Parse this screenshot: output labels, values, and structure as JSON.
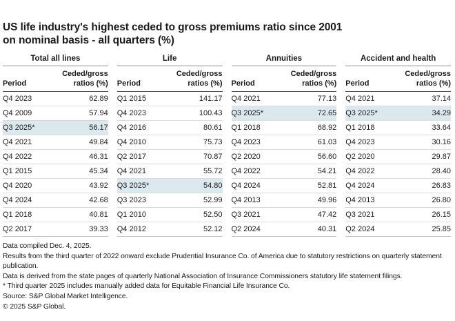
{
  "title": {
    "line1": "US life industry's highest ceded to gross premiums ratio since 2001",
    "line2": "on nominal basis - all quarters (%)"
  },
  "chart_data": {
    "type": "table",
    "title": "US life industry's highest ceded to gross premiums ratio since 2001 on nominal basis - all quarters (%)",
    "period_header": "Period",
    "value_header": "Ceded/gross\nratios (%)",
    "highlighted_period": "Q3 2025*",
    "groups": [
      {
        "label": "Total all lines",
        "rows": [
          {
            "period": "Q4 2023",
            "value": "62.89",
            "highlight": false
          },
          {
            "period": "Q4 2009",
            "value": "57.94",
            "highlight": false
          },
          {
            "period": "Q3 2025*",
            "value": "56.17",
            "highlight": true
          },
          {
            "period": "Q4 2021",
            "value": "49.84",
            "highlight": false
          },
          {
            "period": "Q4 2022",
            "value": "46.31",
            "highlight": false
          },
          {
            "period": "Q1 2015",
            "value": "45.34",
            "highlight": false
          },
          {
            "period": "Q4 2020",
            "value": "43.92",
            "highlight": false
          },
          {
            "period": "Q4 2024",
            "value": "42.68",
            "highlight": false
          },
          {
            "period": "Q1 2018",
            "value": "40.81",
            "highlight": false
          },
          {
            "period": "Q2 2017",
            "value": "39.33",
            "highlight": false
          }
        ]
      },
      {
        "label": "Life",
        "rows": [
          {
            "period": "Q1 2015",
            "value": "141.17",
            "highlight": false
          },
          {
            "period": "Q4 2023",
            "value": "100.43",
            "highlight": false
          },
          {
            "period": "Q4 2016",
            "value": "80.61",
            "highlight": false
          },
          {
            "period": "Q4 2010",
            "value": "75.73",
            "highlight": false
          },
          {
            "period": "Q2 2017",
            "value": "70.87",
            "highlight": false
          },
          {
            "period": "Q4 2021",
            "value": "55.72",
            "highlight": false
          },
          {
            "period": "Q3 2025*",
            "value": "54.80",
            "highlight": true
          },
          {
            "period": "Q3 2023",
            "value": "52.99",
            "highlight": false
          },
          {
            "period": "Q1 2010",
            "value": "52.50",
            "highlight": false
          },
          {
            "period": "Q4 2012",
            "value": "52.12",
            "highlight": false
          }
        ]
      },
      {
        "label": "Annuities",
        "rows": [
          {
            "period": "Q4 2021",
            "value": "77.13",
            "highlight": false
          },
          {
            "period": "Q3 2025*",
            "value": "72.65",
            "highlight": true
          },
          {
            "period": "Q1 2018",
            "value": "68.92",
            "highlight": false
          },
          {
            "period": "Q4 2023",
            "value": "61.03",
            "highlight": false
          },
          {
            "period": "Q2 2020",
            "value": "56.60",
            "highlight": false
          },
          {
            "period": "Q4 2022",
            "value": "54.21",
            "highlight": false
          },
          {
            "period": "Q4 2024",
            "value": "52.81",
            "highlight": false
          },
          {
            "period": "Q4 2013",
            "value": "49.96",
            "highlight": false
          },
          {
            "period": "Q3 2021",
            "value": "47.42",
            "highlight": false
          },
          {
            "period": "Q2 2024",
            "value": "40.31",
            "highlight": false
          }
        ]
      },
      {
        "label": "Accident and health",
        "rows": [
          {
            "period": "Q4 2021",
            "value": "37.14",
            "highlight": false
          },
          {
            "period": "Q3 2025*",
            "value": "34.29",
            "highlight": true
          },
          {
            "period": "Q1 2018",
            "value": "33.64",
            "highlight": false
          },
          {
            "period": "Q4 2023",
            "value": "30.16",
            "highlight": false
          },
          {
            "period": "Q2 2020",
            "value": "29.87",
            "highlight": false
          },
          {
            "period": "Q4 2022",
            "value": "28.40",
            "highlight": false
          },
          {
            "period": "Q4 2024",
            "value": "26.83",
            "highlight": false
          },
          {
            "period": "Q4 2013",
            "value": "26.80",
            "highlight": false
          },
          {
            "period": "Q3 2021",
            "value": "26.15",
            "highlight": false
          },
          {
            "period": "Q2 2024",
            "value": "25.85",
            "highlight": false
          }
        ]
      }
    ]
  },
  "footnotes": [
    "Data compiled Dec. 4, 2025.",
    "Results from the third quarter of 2022 onward exclude Prudential Insurance Co. of America due to statutory restrictions on quarterly statement publication.",
    "Data is derived from the state pages of quarterly National Association of Insurance Commissioners statutory life statement filings.",
    "* Third quarter 2025 includes manually added data for Equitable Financial Life Insurance Co.",
    "Source: S&P Global Market Intelligence.",
    "© 2025 S&P Global."
  ],
  "colors": {
    "highlight": "#dbe9ee",
    "text": "#1a1a1a",
    "rule_light": "#dcdcdc",
    "rule_medium": "#8c8c8c",
    "rule_dark": "#4d4d4d"
  }
}
